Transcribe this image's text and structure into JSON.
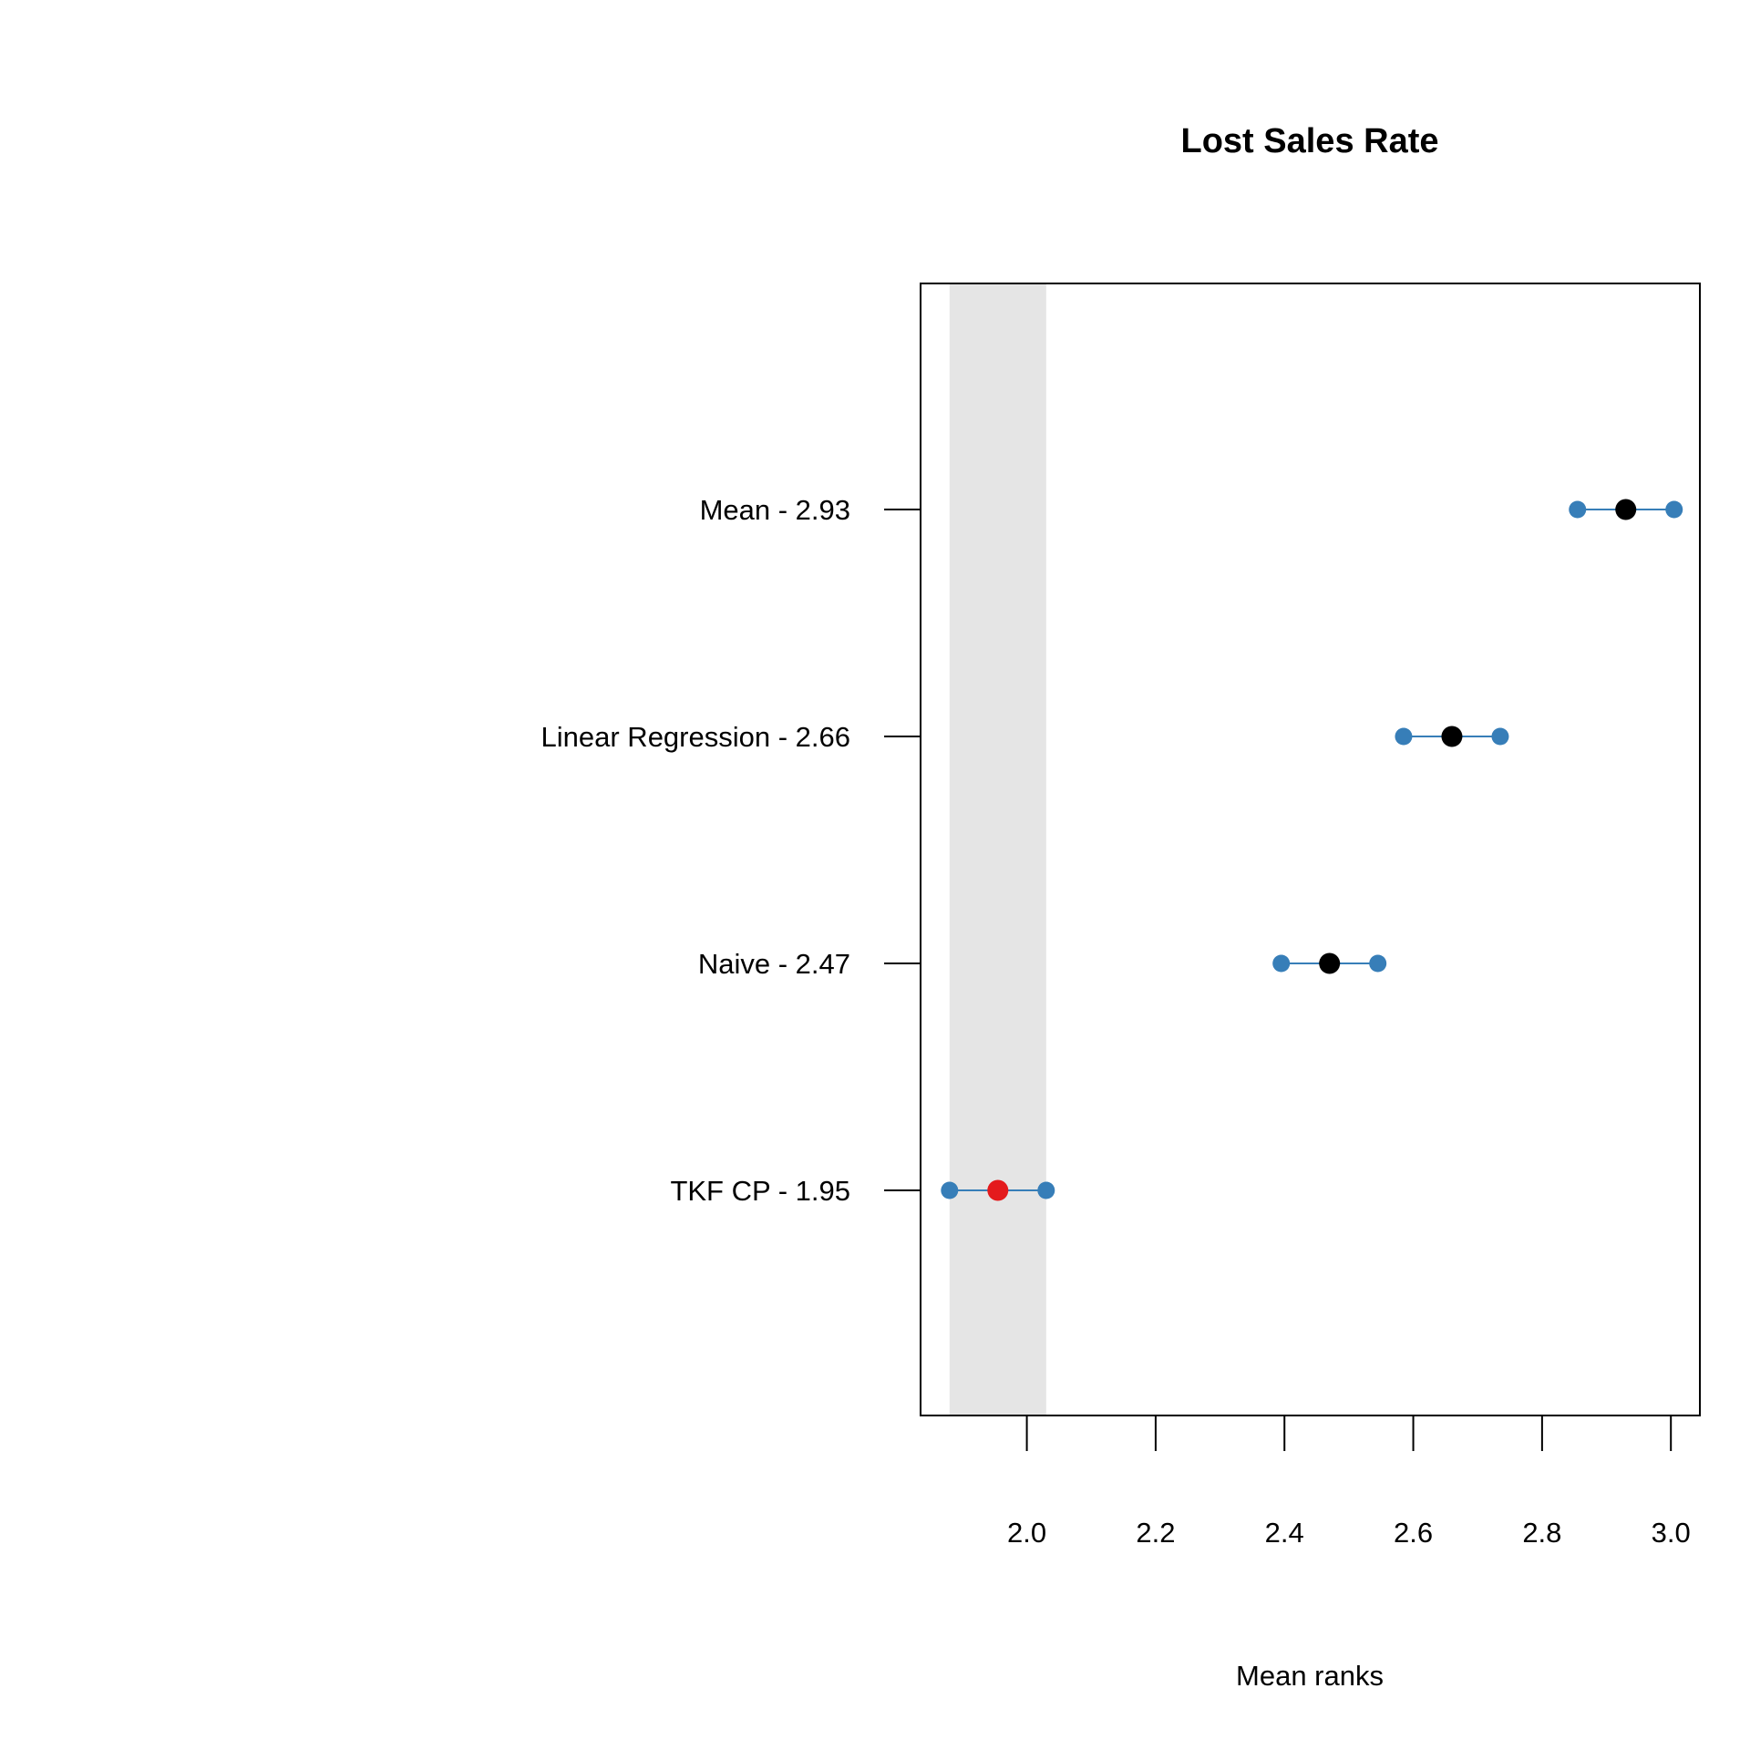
{
  "chart_data": {
    "type": "scatter",
    "title": "Lost Sales Rate",
    "xlabel": "Mean ranks",
    "xlim": [
      1.835,
      3.045
    ],
    "xticks": [
      2.0,
      2.2,
      2.4,
      2.6,
      2.8,
      3.0
    ],
    "xtick_labels": [
      "2.0",
      "2.2",
      "2.4",
      "2.6",
      "2.8",
      "3.0"
    ],
    "critical_band": [
      1.88,
      2.03
    ],
    "rows": [
      {
        "label": "Mean - 2.93",
        "mean": 2.93,
        "lower": 2.855,
        "upper": 3.005,
        "highlight": false
      },
      {
        "label": "Linear Regression - 2.66",
        "mean": 2.66,
        "lower": 2.585,
        "upper": 2.735,
        "highlight": false
      },
      {
        "label": "Naive - 2.47",
        "mean": 2.47,
        "lower": 2.395,
        "upper": 2.545,
        "highlight": false
      },
      {
        "label": "TKF CP - 1.95",
        "mean": 1.955,
        "lower": 1.88,
        "upper": 2.03,
        "highlight": true
      }
    ],
    "grid": false,
    "legend": "none",
    "colors": {
      "interval": "#377EB8",
      "mean": "#000000",
      "best": "#E41A1C",
      "band": "#E5E5E5",
      "axis": "#000000"
    }
  }
}
